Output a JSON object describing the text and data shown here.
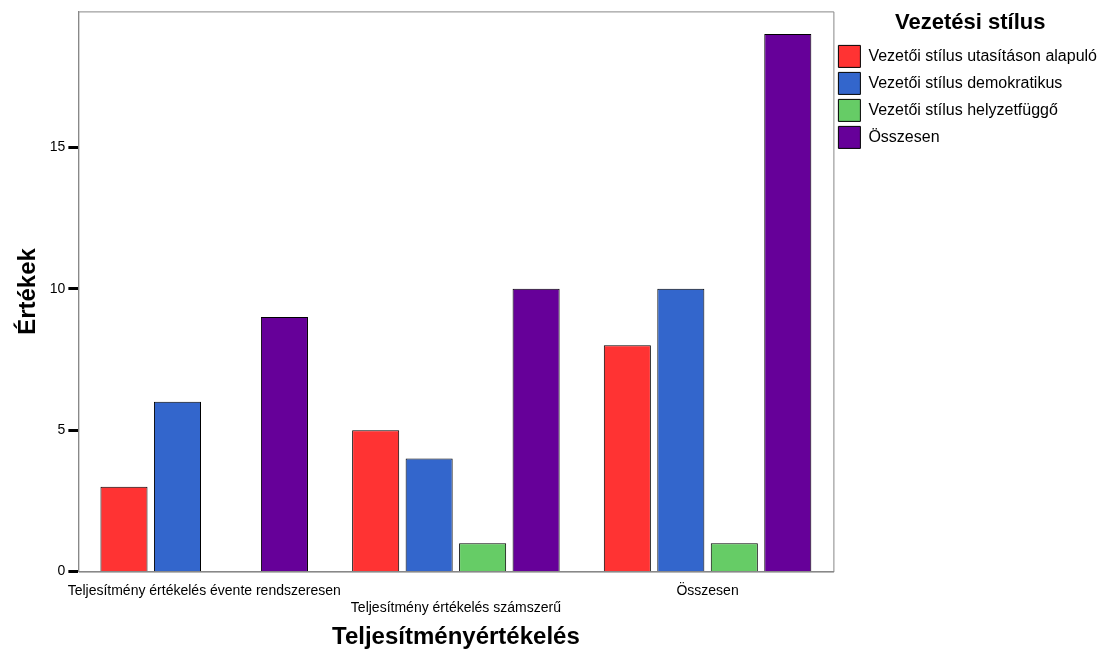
{
  "chart_data": {
    "type": "bar",
    "xlabel": "Teljesítményértékelés",
    "ylabel": "Értékek",
    "legend_title": "Vezetési stílus",
    "legend": "top right",
    "grid": false,
    "categories": [
      "Teljesítmény értékelés évente rendszeresen",
      "Teljesítmény értékelés számszerű",
      "Összesen"
    ],
    "ylim": [
      0,
      19.8
    ],
    "yticks": [
      0,
      5,
      10,
      15
    ],
    "series": [
      {
        "name": "Vezetői stílus utasításon alapuló",
        "color": "#ff3333",
        "values": [
          3,
          5,
          8
        ]
      },
      {
        "name": "Vezetői stílus demokratikus",
        "color": "#3366cc",
        "values": [
          6,
          4,
          10
        ]
      },
      {
        "name": "Vezetői stílus helyzetfüggő",
        "color": "#66cc66",
        "values": [
          null,
          1,
          1
        ]
      },
      {
        "name": "Összesen",
        "color": "#660099",
        "values": [
          9,
          10,
          19
        ]
      }
    ]
  }
}
